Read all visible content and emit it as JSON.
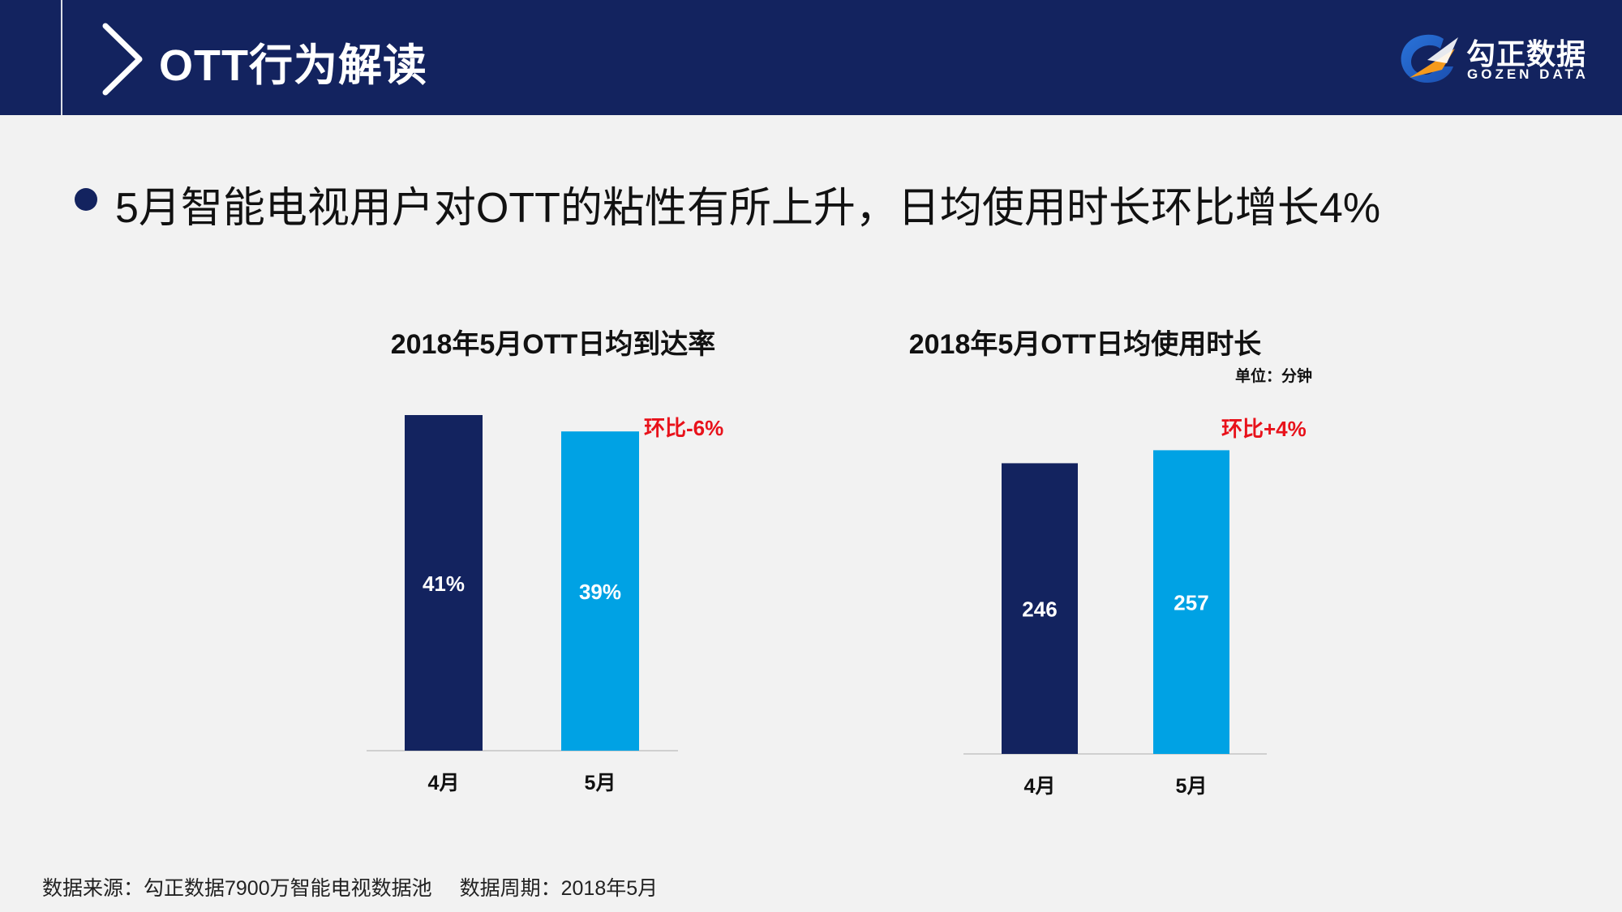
{
  "header": {
    "title": "OTT行为解读",
    "logo_cn": "勾正数据",
    "logo_en": "GOZEN DATA"
  },
  "headline": "5月智能电视用户对OTT的粘性有所上升，日均使用时长环比增长4%",
  "colors": {
    "navy": "#13235f",
    "bar_prev": "#13235f",
    "bar_curr": "#00a2e4",
    "change": "#e8121b"
  },
  "chart_data": [
    {
      "type": "bar",
      "title": "2018年5月OTT日均到达率",
      "categories": [
        "4月",
        "5月"
      ],
      "values": [
        41,
        39
      ],
      "value_labels": [
        "41%",
        "39%"
      ],
      "change_label": "环比-6%",
      "unit_label": "",
      "ylim": [
        0,
        41
      ]
    },
    {
      "type": "bar",
      "title": "2018年5月OTT日均使用时长",
      "categories": [
        "4月",
        "5月"
      ],
      "values": [
        246,
        257
      ],
      "value_labels": [
        "246",
        "257"
      ],
      "change_label": "环比+4%",
      "unit_label": "单位：分钟",
      "ylim": [
        0,
        295
      ]
    }
  ],
  "footer": {
    "source": "数据来源：勾正数据7900万智能电视数据池",
    "period": "数据周期：2018年5月"
  }
}
